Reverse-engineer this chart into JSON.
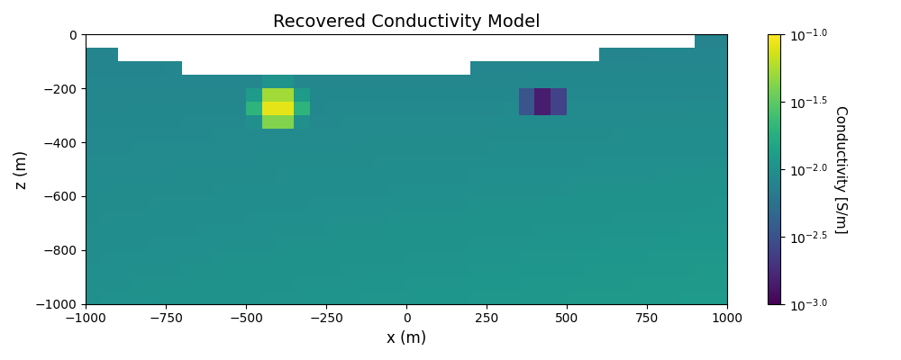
{
  "title": "Recovered Conductivity Model",
  "xlabel": "x (m)",
  "ylabel": "z (m)",
  "xlim": [
    -1000,
    1000
  ],
  "ylim": [
    -1000,
    0
  ],
  "cmap": "viridis",
  "vmin": -3.0,
  "vmax": -1.0,
  "figsize": [
    10,
    4
  ],
  "dpi": 100,
  "colorbar_label": "Conductivity [S/m]",
  "background_log10": -2.0,
  "nx": 40,
  "nz": 20
}
